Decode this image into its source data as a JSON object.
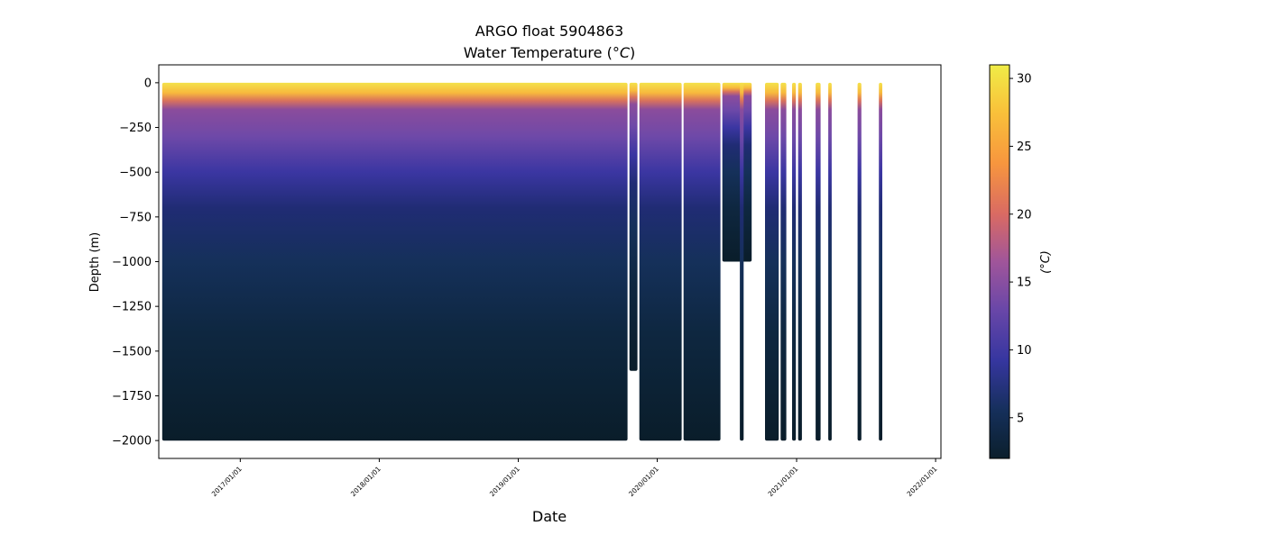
{
  "chart_data": {
    "type": "scatter",
    "title_line1": "ARGO float 5904863",
    "title_line2_prefix": "Water Temperature (",
    "title_line2_unit": "°C",
    "title_line2_suffix": ")",
    "xlabel": "Date",
    "ylabel": "Depth (m)",
    "colorbar_label": "(°C)",
    "x_ticks": [
      "2017/01/01",
      "2018/01/01",
      "2019/01/01",
      "2020/01/01",
      "2021/01/01",
      "2022/01/01"
    ],
    "x_range": [
      "2016-06-01",
      "2022-01-15"
    ],
    "y_ticks": [
      0,
      -250,
      -500,
      -750,
      -1000,
      -1250,
      -1500,
      -1750,
      -2000
    ],
    "y_tick_labels": [
      "0",
      "−250",
      "−500",
      "−750",
      "−1000",
      "−1250",
      "−1500",
      "−1750",
      "−2000"
    ],
    "ylim": [
      -2100,
      100
    ],
    "colorbar_range": [
      2,
      31
    ],
    "colorbar_ticks": [
      5,
      10,
      15,
      20,
      25,
      30
    ],
    "colormap": [
      "#0b1f2c",
      "#152f5a",
      "#3636a0",
      "#6a47a8",
      "#a0559a",
      "#d96a63",
      "#f7963e",
      "#f9c13a",
      "#f0ec47"
    ],
    "grid": false,
    "segments": [
      {
        "start": "2016-06-10",
        "end": "2019-10-15",
        "max_depth": -2000
      },
      {
        "start": "2019-10-20",
        "end": "2019-11-10",
        "max_depth": -1610
      },
      {
        "start": "2019-11-15",
        "end": "2020-03-05",
        "max_depth": -2000
      },
      {
        "start": "2020-03-10",
        "end": "2020-06-15",
        "max_depth": -2000
      },
      {
        "start": "2020-06-20",
        "end": "2020-09-05",
        "max_depth": -1000
      },
      {
        "start": "2020-08-05",
        "end": "2020-08-15",
        "max_depth": -2000
      },
      {
        "start": "2020-10-10",
        "end": "2020-11-15",
        "max_depth": -2000
      },
      {
        "start": "2020-11-20",
        "end": "2020-12-05",
        "max_depth": -2000
      },
      {
        "start": "2020-12-20",
        "end": "2020-12-30",
        "max_depth": -2000
      },
      {
        "start": "2021-01-05",
        "end": "2021-01-15",
        "max_depth": -2000
      },
      {
        "start": "2021-02-20",
        "end": "2021-03-05",
        "max_depth": -2000
      },
      {
        "start": "2021-03-25",
        "end": "2021-04-03",
        "max_depth": -2000
      },
      {
        "start": "2021-06-10",
        "end": "2021-06-20",
        "max_depth": -2000
      },
      {
        "start": "2021-08-05",
        "end": "2021-08-14",
        "max_depth": -2000
      }
    ]
  }
}
